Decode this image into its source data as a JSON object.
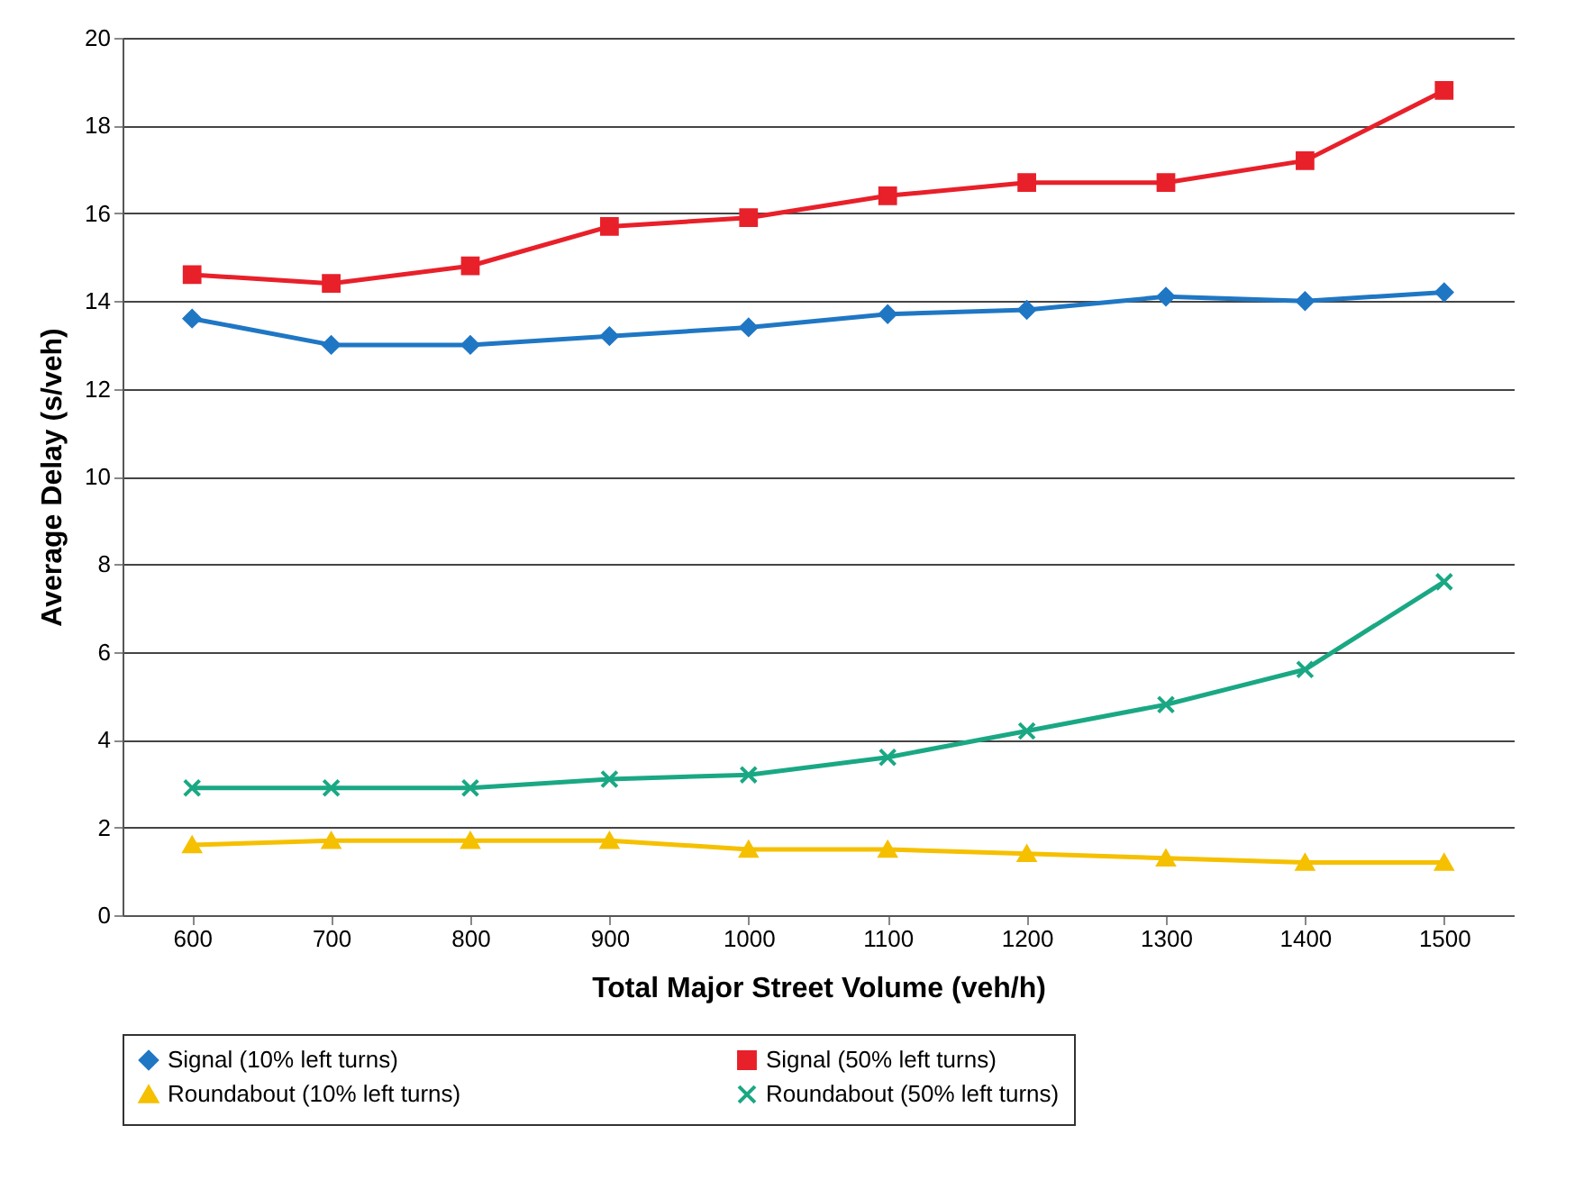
{
  "chart_data": {
    "type": "line",
    "xlabel": "Total Major Street Volume (veh/h)",
    "ylabel": "Average Delay (s/veh)",
    "categories": [
      "600",
      "700",
      "800",
      "900",
      "1000",
      "1100",
      "1200",
      "1300",
      "1400",
      "1500"
    ],
    "series": [
      {
        "name": "Signal (10% left turns)",
        "color": "#1f77c4",
        "marker": "diamond",
        "values": [
          13.6,
          13.0,
          13.0,
          13.2,
          13.4,
          13.7,
          13.8,
          14.1,
          14.0,
          14.2
        ]
      },
      {
        "name": "Signal (50% left turns)",
        "color": "#e8202a",
        "marker": "square",
        "values": [
          14.6,
          14.4,
          14.8,
          15.7,
          15.9,
          16.4,
          16.7,
          16.7,
          17.2,
          18.8
        ]
      },
      {
        "name": "Roundabout (10% left turns)",
        "color": "#f5c000",
        "marker": "triangle",
        "values": [
          1.6,
          1.7,
          1.7,
          1.7,
          1.5,
          1.5,
          1.4,
          1.3,
          1.2,
          1.2
        ]
      },
      {
        "name": "Roundabout (50% left turns)",
        "color": "#1aa884",
        "marker": "cross",
        "values": [
          2.9,
          2.9,
          2.9,
          3.1,
          3.2,
          3.6,
          4.2,
          4.8,
          5.6,
          7.6
        ]
      }
    ],
    "ylim": [
      0,
      20
    ],
    "yticks": [
      0,
      2,
      4,
      6,
      8,
      10,
      12,
      14,
      16,
      18,
      20
    ],
    "grid": "y",
    "legend": "bottom",
    "line_style": "solid"
  }
}
